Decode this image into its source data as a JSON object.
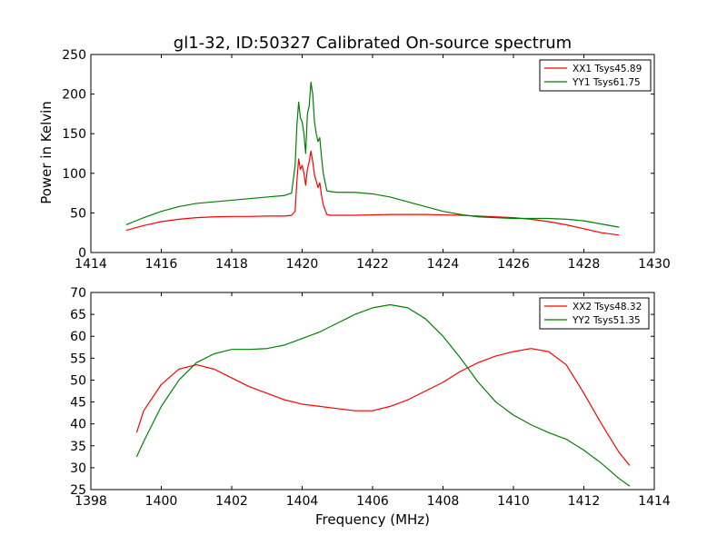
{
  "figure_title": "gl1-32, ID:50327 Calibrated On-source spectrum",
  "colors": {
    "xx": "#ff0000",
    "yy": "#008000",
    "axes": "#000000",
    "background": "#ffffff"
  },
  "chart_data": [
    {
      "type": "line",
      "title": "gl1-32, ID:50327 Calibrated On-source spectrum",
      "xlabel": "",
      "ylabel": "Power in Kelvin",
      "xlim": [
        1414,
        1430
      ],
      "ylim": [
        0,
        250
      ],
      "xticks": [
        1414,
        1416,
        1418,
        1420,
        1422,
        1424,
        1426,
        1428,
        1430
      ],
      "yticks": [
        0,
        50,
        100,
        150,
        200,
        250
      ],
      "grid": false,
      "legend_position": "top-right",
      "series": [
        {
          "name": "XX1 Tsys45.89",
          "color": "#ff0000",
          "x": [
            1415.0,
            1415.5,
            1416.0,
            1416.5,
            1417.0,
            1417.5,
            1418.0,
            1418.5,
            1419.0,
            1419.5,
            1419.7,
            1419.8,
            1419.85,
            1419.9,
            1419.95,
            1420.0,
            1420.05,
            1420.1,
            1420.15,
            1420.2,
            1420.25,
            1420.3,
            1420.35,
            1420.4,
            1420.45,
            1420.5,
            1420.55,
            1420.6,
            1420.7,
            1420.8,
            1421.0,
            1421.5,
            1422.0,
            1422.5,
            1423.0,
            1423.5,
            1424.0,
            1424.5,
            1425.0,
            1425.5,
            1426.0,
            1426.5,
            1427.0,
            1427.5,
            1428.0,
            1428.5,
            1429.0
          ],
          "y": [
            28,
            34,
            39,
            42,
            44,
            45,
            45.5,
            45.5,
            46,
            46,
            47,
            52,
            90,
            118,
            105,
            110,
            100,
            85,
            105,
            115,
            128,
            115,
            98,
            90,
            82,
            88,
            72,
            60,
            48,
            47,
            47,
            47,
            47.5,
            48,
            48,
            48,
            47.5,
            47,
            46,
            45,
            44,
            42,
            39,
            35,
            30,
            25,
            22
          ]
        },
        {
          "name": "YY1 Tsys61.75",
          "color": "#008000",
          "x": [
            1415.0,
            1415.5,
            1416.0,
            1416.5,
            1417.0,
            1417.5,
            1418.0,
            1418.5,
            1419.0,
            1419.5,
            1419.7,
            1419.8,
            1419.85,
            1419.9,
            1419.95,
            1420.0,
            1420.05,
            1420.1,
            1420.15,
            1420.2,
            1420.25,
            1420.3,
            1420.35,
            1420.4,
            1420.45,
            1420.5,
            1420.55,
            1420.6,
            1420.7,
            1420.8,
            1421.0,
            1421.5,
            1422.0,
            1422.5,
            1423.0,
            1423.5,
            1424.0,
            1424.5,
            1425.0,
            1425.5,
            1426.0,
            1426.5,
            1427.0,
            1427.5,
            1428.0,
            1428.5,
            1429.0
          ],
          "y": [
            35,
            44,
            52,
            58,
            62,
            64,
            66,
            68,
            70,
            72,
            75,
            110,
            160,
            190,
            170,
            165,
            150,
            125,
            175,
            185,
            215,
            200,
            165,
            150,
            140,
            145,
            120,
            100,
            78,
            77,
            76,
            76,
            74,
            70,
            64,
            58,
            52,
            48,
            45,
            44,
            43,
            43,
            43,
            42,
            40,
            36,
            32
          ]
        }
      ]
    },
    {
      "type": "line",
      "title": "",
      "xlabel": "Frequency (MHz)",
      "ylabel": "",
      "xlim": [
        1398,
        1414
      ],
      "ylim": [
        25,
        70
      ],
      "xticks": [
        1398,
        1400,
        1402,
        1404,
        1406,
        1408,
        1410,
        1412,
        1414
      ],
      "yticks": [
        25,
        30,
        35,
        40,
        45,
        50,
        55,
        60,
        65,
        70
      ],
      "grid": false,
      "legend_position": "top-right",
      "series": [
        {
          "name": "XX2 Tsys48.32",
          "color": "#ff0000",
          "x": [
            1399.3,
            1399.5,
            1400.0,
            1400.5,
            1401.0,
            1401.5,
            1402.0,
            1402.5,
            1403.0,
            1403.5,
            1404.0,
            1404.5,
            1405.0,
            1405.5,
            1406.0,
            1406.5,
            1407.0,
            1407.5,
            1408.0,
            1408.5,
            1409.0,
            1409.5,
            1410.0,
            1410.5,
            1411.0,
            1411.5,
            1412.0,
            1412.5,
            1413.0,
            1413.3
          ],
          "y": [
            38,
            43,
            49,
            52.5,
            53.5,
            52.5,
            50.5,
            48.5,
            47,
            45.5,
            44.5,
            44,
            43.5,
            43,
            43,
            44,
            45.5,
            47.5,
            49.5,
            52,
            54,
            55.5,
            56.5,
            57.2,
            56.5,
            53.5,
            47,
            40,
            33.5,
            30.5
          ]
        },
        {
          "name": "YY2 Tsys51.35",
          "color": "#008000",
          "x": [
            1399.3,
            1399.5,
            1400.0,
            1400.5,
            1401.0,
            1401.5,
            1402.0,
            1402.5,
            1403.0,
            1403.5,
            1404.0,
            1404.5,
            1405.0,
            1405.5,
            1406.0,
            1406.5,
            1407.0,
            1407.5,
            1408.0,
            1408.5,
            1409.0,
            1409.5,
            1410.0,
            1410.5,
            1411.0,
            1411.5,
            1412.0,
            1412.5,
            1413.0,
            1413.3
          ],
          "y": [
            32.5,
            36,
            44,
            50,
            54,
            56,
            57,
            57,
            57.2,
            58,
            59.5,
            61,
            63,
            65,
            66.5,
            67.2,
            66.5,
            64,
            60,
            55,
            49.5,
            45,
            42,
            39.8,
            38,
            36.5,
            34,
            31,
            27.5,
            25.8
          ]
        }
      ]
    }
  ]
}
